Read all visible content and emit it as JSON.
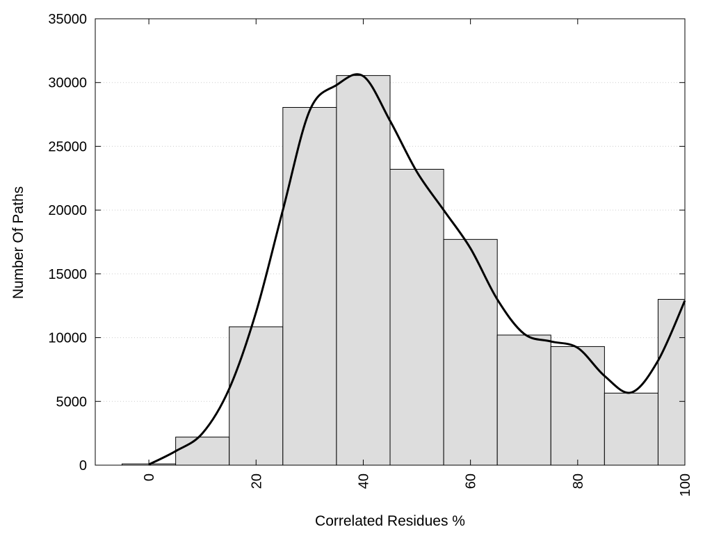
{
  "chart_data": {
    "type": "bar",
    "title": "",
    "xlabel": "Correlated Residues %",
    "ylabel": "Number Of Paths",
    "xlim": [
      -10,
      100
    ],
    "ylim": [
      0,
      35000
    ],
    "x_ticks": [
      0,
      20,
      40,
      60,
      80,
      100
    ],
    "y_ticks": [
      0,
      5000,
      10000,
      15000,
      20000,
      25000,
      30000,
      35000
    ],
    "grid": "horizontal dotted",
    "bin_width": 10,
    "categories": [
      0,
      10,
      20,
      30,
      40,
      50,
      60,
      70,
      80,
      90,
      100
    ],
    "values": [
      100,
      2200,
      10850,
      28050,
      30550,
      23200,
      17700,
      10200,
      9300,
      5650,
      13000
    ],
    "curve": {
      "x": [
        0,
        5,
        10,
        15,
        20,
        25,
        30,
        35,
        40,
        45,
        50,
        55,
        60,
        65,
        70,
        75,
        80,
        85,
        90,
        95,
        100
      ],
      "y": [
        50,
        1100,
        2500,
        6000,
        12000,
        20000,
        27800,
        29800,
        30500,
        27000,
        23000,
        20000,
        17000,
        13000,
        10300,
        9700,
        9200,
        7000,
        5700,
        8200,
        12900
      ]
    },
    "colors": {
      "bar_fill": "#dddddd",
      "bar_stroke": "#000000",
      "curve": "#000000",
      "grid": "#cccccc"
    }
  }
}
